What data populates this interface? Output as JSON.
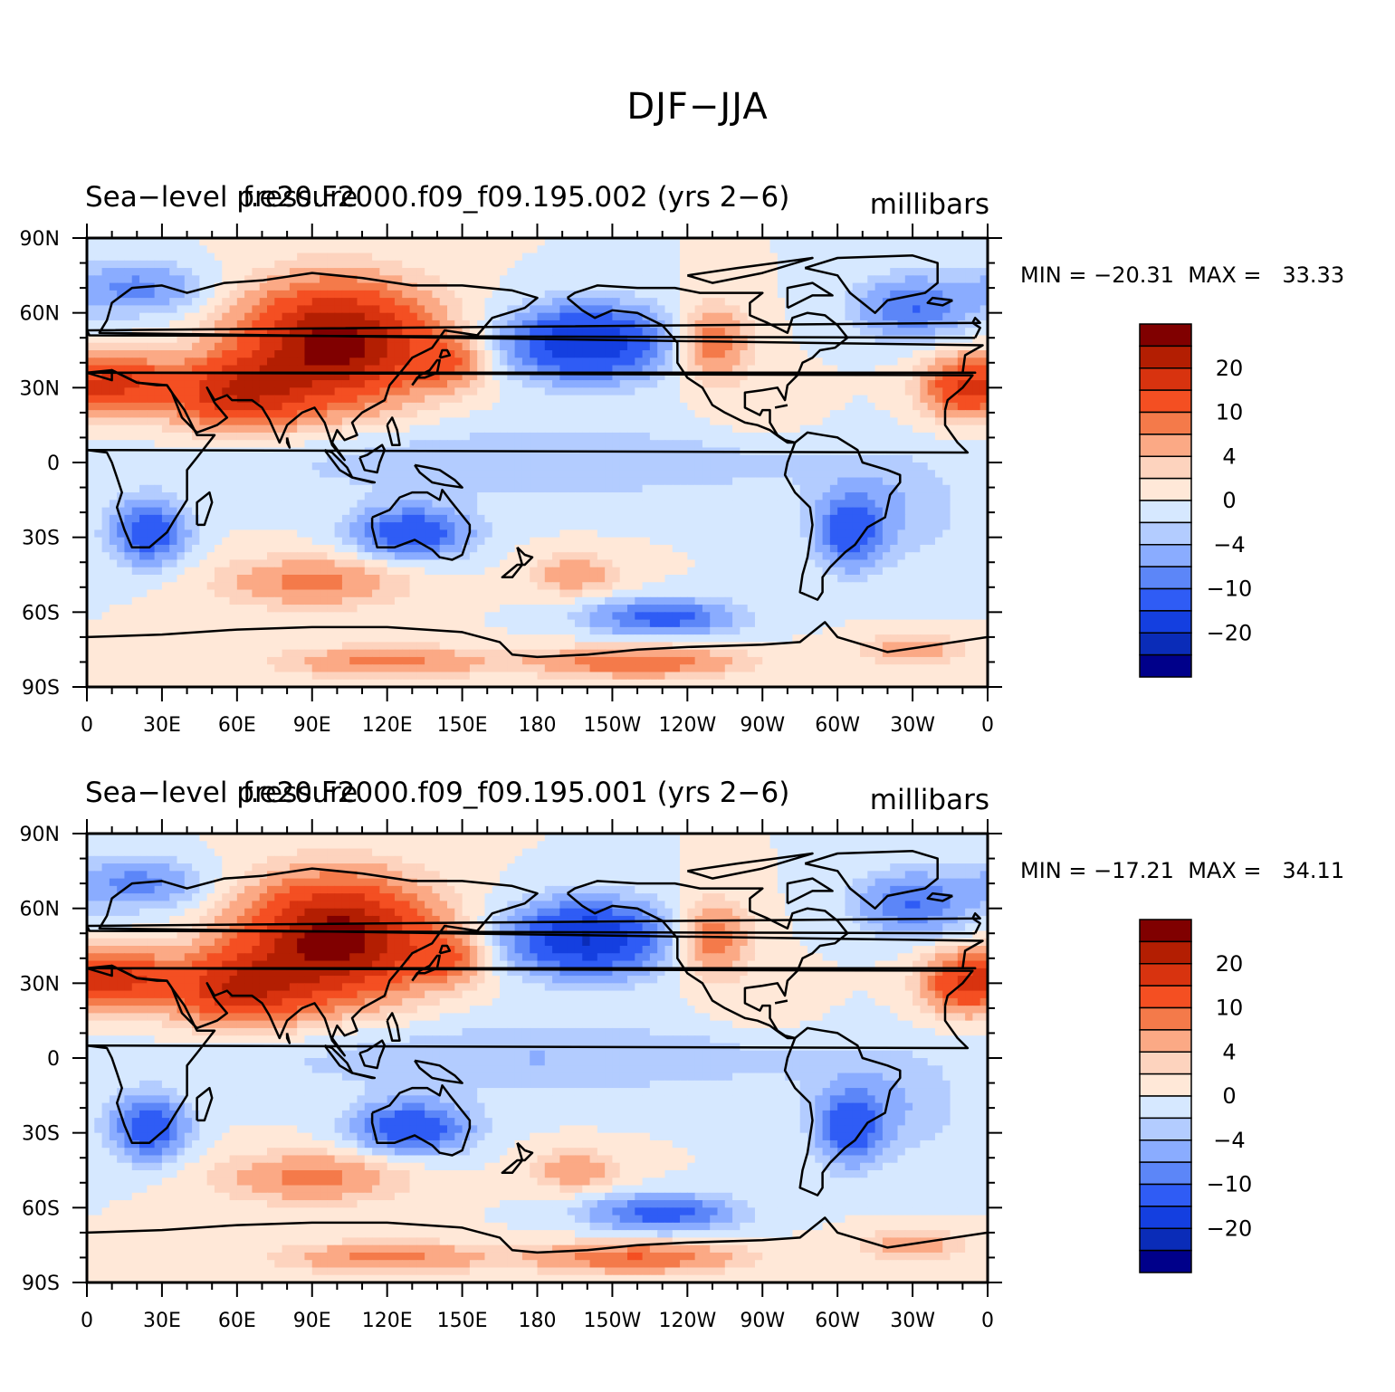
{
  "figure": {
    "title": "DJF−JJA"
  },
  "axes": {
    "lat_ticks": [
      {
        "lat": 90,
        "label": "90N"
      },
      {
        "lat": 60,
        "label": "60N"
      },
      {
        "lat": 30,
        "label": "30N"
      },
      {
        "lat": 0,
        "label": "0"
      },
      {
        "lat": -30,
        "label": "30S"
      },
      {
        "lat": -60,
        "label": "60S"
      },
      {
        "lat": -90,
        "label": "90S"
      }
    ],
    "lon_ticks": [
      {
        "lon": 0,
        "label": "0"
      },
      {
        "lon": 30,
        "label": "30E"
      },
      {
        "lon": 60,
        "label": "60E"
      },
      {
        "lon": 90,
        "label": "90E"
      },
      {
        "lon": 120,
        "label": "120E"
      },
      {
        "lon": 150,
        "label": "150E"
      },
      {
        "lon": 180,
        "label": "180"
      },
      {
        "lon": 210,
        "label": "150W"
      },
      {
        "lon": 240,
        "label": "120W"
      },
      {
        "lon": 270,
        "label": "90W"
      },
      {
        "lon": 300,
        "label": "60W"
      },
      {
        "lon": 330,
        "label": "30W"
      },
      {
        "lon": 360,
        "label": "0"
      }
    ]
  },
  "colorbar": {
    "labels": [
      {
        "level": 20,
        "text": "20"
      },
      {
        "level": 10,
        "text": "10"
      },
      {
        "level": 4,
        "text": "4"
      },
      {
        "level": 0,
        "text": "0"
      },
      {
        "level": -4,
        "text": "−4"
      },
      {
        "level": -10,
        "text": "−10"
      },
      {
        "level": -20,
        "text": "−20"
      }
    ],
    "colors": [
      "#800000",
      "#b31e02",
      "#d8330f",
      "#f44f22",
      "#f47a4a",
      "#fba985",
      "#fdd3be",
      "#ffe8d8",
      "#d6e8ff",
      "#b3ccff",
      "#8aacff",
      "#5c86f8",
      "#2f5cf5",
      "#143fe0",
      "#0a2cb8",
      "#00008a"
    ]
  },
  "panels": [
    {
      "variable": "Sea−level pressure",
      "case": "f.e20.F2000.f09_f09.195.002 (yrs 2−6)",
      "units": "millibars",
      "min_label": "MIN = −20.31",
      "max_label": "MAX =   33.33",
      "min": -20.31,
      "max": 33.33
    },
    {
      "variable": "Sea−level pressure",
      "case": "f.e20.F2000.f09_f09.195.001 (yrs 2−6)",
      "units": "millibars",
      "min_label": "MIN = −17.21",
      "max_label": "MAX =   34.11",
      "min": -17.21,
      "max": 34.11
    }
  ]
}
